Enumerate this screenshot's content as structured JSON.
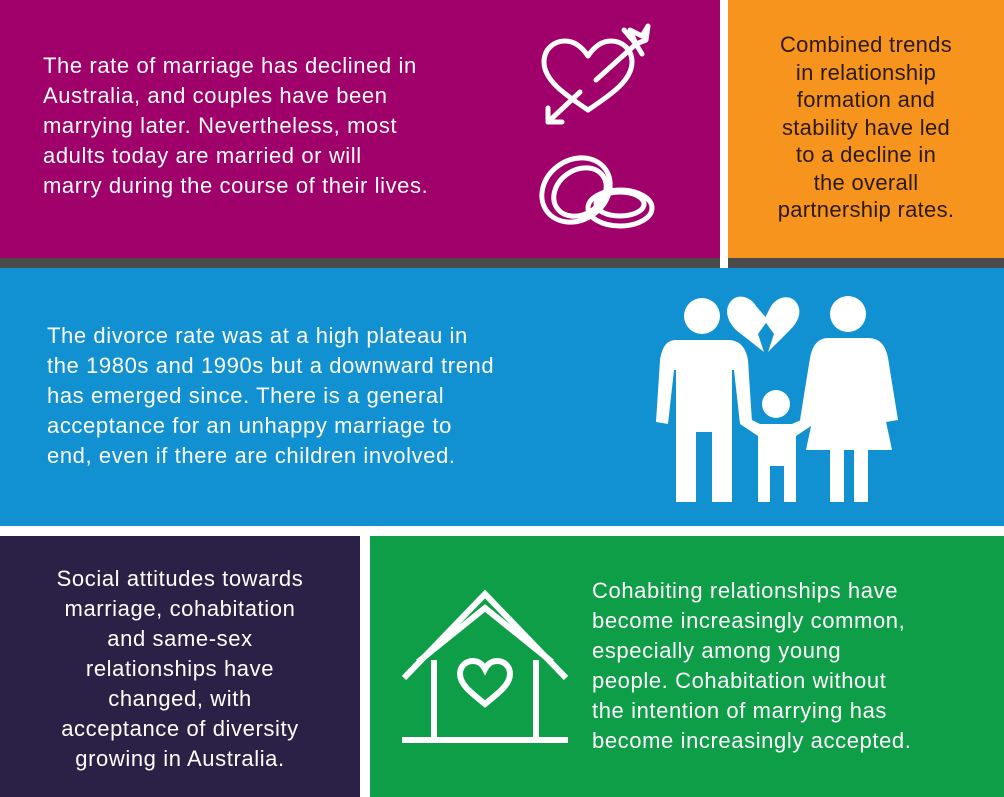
{
  "panels": {
    "marriage": {
      "text": "The rate of marriage has declined in\nAustralia, and couples have been\nmarrying later. Nevertheless, most\nadults today are married or will\nmarry during the course of their lives.",
      "color": "#a0006a",
      "icons": [
        "heart-arrow-icon",
        "wedding-rings-icon"
      ]
    },
    "trends": {
      "text": "Combined trends\nin relationship\nformation and\nstability have led\nto a decline in\nthe overall\npartnership rates.",
      "color": "#f7941d"
    },
    "divorce": {
      "text": "The divorce rate was at a high plateau in\nthe 1980s and 1990s but a downward trend\nhas emerged since. There is a general\nacceptance for an unhappy marriage to\nend, even if there are children involved.",
      "color": "#1191d2",
      "icons": [
        "family-broken-heart-icon"
      ]
    },
    "attitudes": {
      "text": "Social attitudes towards\nmarriage, cohabitation\nand same-sex\nrelationships have\nchanged, with\nacceptance of diversity\ngrowing in Australia.",
      "color": "#2b2045"
    },
    "cohabitation": {
      "text": "Cohabiting relationships have\nbecome increasingly common,\nespecially among young\npeople. Cohabitation without\nthe intention of marrying has\nbecome increasingly accepted.",
      "color": "#0e9e48",
      "icons": [
        "house-heart-icon"
      ]
    }
  }
}
